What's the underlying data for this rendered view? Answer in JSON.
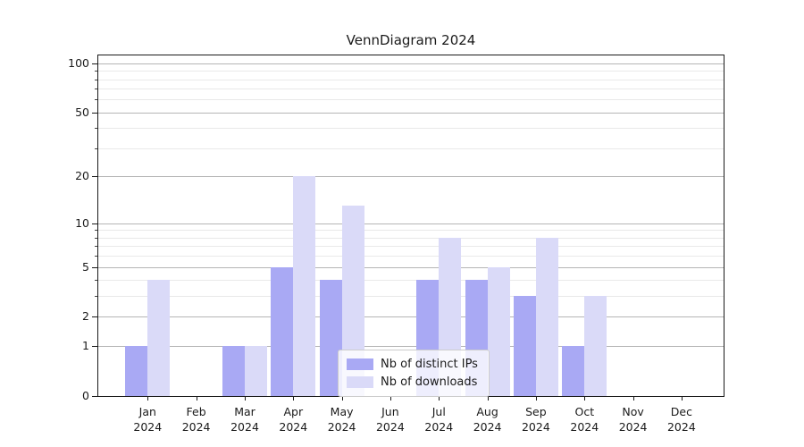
{
  "chart_data": {
    "type": "bar",
    "title": "VennDiagram 2024",
    "categories": [
      "Jan",
      "Feb",
      "Mar",
      "Apr",
      "May",
      "Jun",
      "Jul",
      "Aug",
      "Sep",
      "Oct",
      "Nov",
      "Dec"
    ],
    "category_year": "2024",
    "series": [
      {
        "name": "Nb of distinct IPs",
        "color": "#a9a9f4",
        "values": [
          1,
          0,
          1,
          5,
          4,
          0,
          4,
          4,
          3,
          1,
          0,
          0
        ]
      },
      {
        "name": "Nb of downloads",
        "color": "#dadaf8",
        "values": [
          4,
          0,
          1,
          20,
          13,
          0,
          8,
          5,
          8,
          3,
          0,
          0
        ]
      }
    ],
    "yscale": "log1p",
    "ylim": [
      0,
      112
    ],
    "ymajor_ticks": [
      0,
      1,
      2,
      5,
      10,
      20,
      50,
      100
    ],
    "ymajor_tick_labels": [
      "0",
      "1",
      "2",
      "5",
      "10",
      "20",
      "50",
      "100"
    ],
    "yminor_ticks": [
      3,
      4,
      6,
      7,
      8,
      9,
      30,
      40,
      60,
      70,
      80,
      90
    ],
    "xlabel": "",
    "ylabel": "",
    "grid": "horizontal major and minor gridlines",
    "legend_position": "lower center, inside axes"
  },
  "colors": {
    "bar_dark": "#a9a9f4",
    "bar_light": "#dadaf8",
    "major_grid": "#b5b5b5",
    "minor_grid": "#e9e9e9",
    "spine": "#1a1a1a",
    "text": "#1a1a1a",
    "legend_border": "#cccccc",
    "background": "#ffffff"
  }
}
